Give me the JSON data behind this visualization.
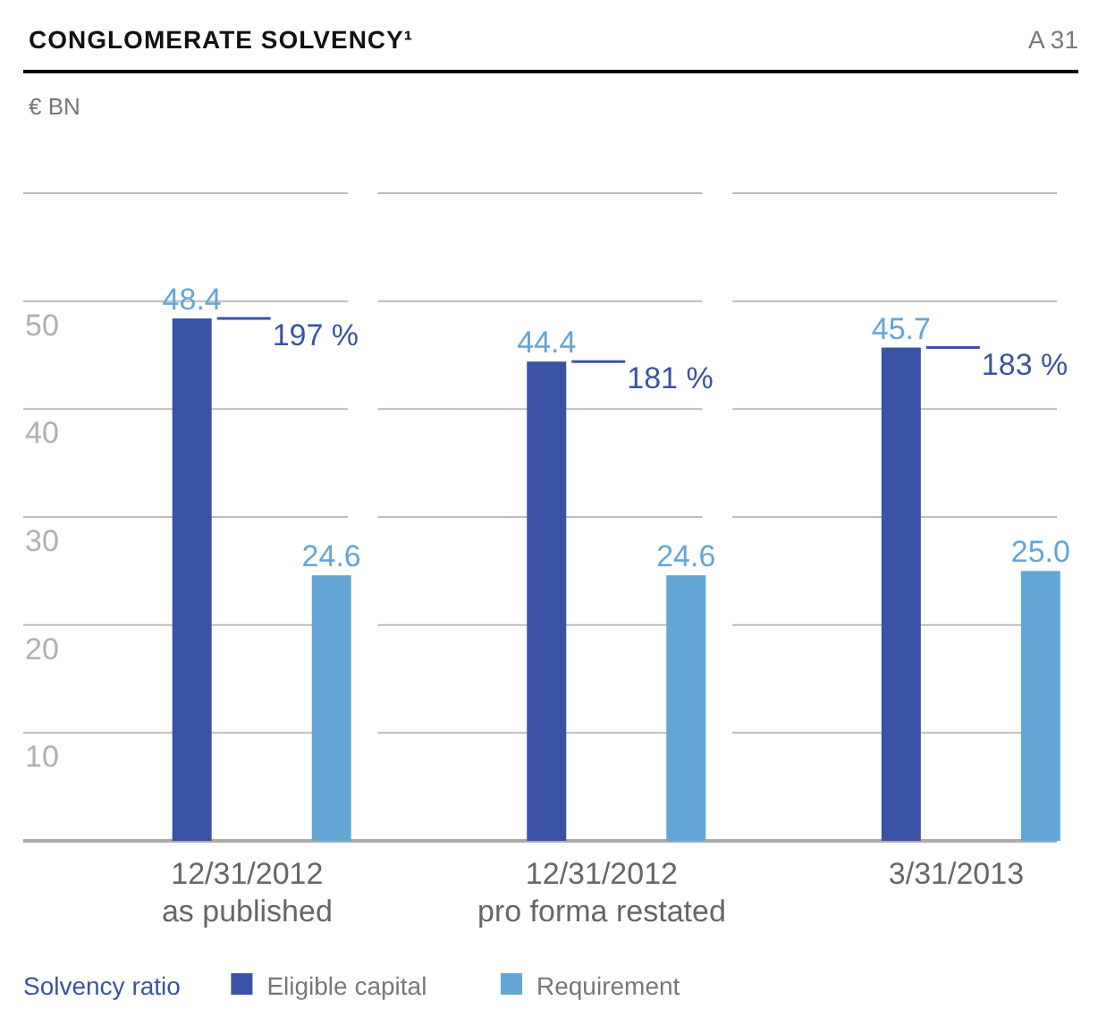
{
  "chart_data": {
    "type": "bar",
    "title": "CONGLOMERATE SOLVENCY¹",
    "subtitle": "A 31",
    "ylabel": "€ BN",
    "categories": [
      "12/31/2012\nas published",
      "12/31/2012\npro forma restated",
      "3/31/2013"
    ],
    "series": [
      {
        "name": "Eligible capital",
        "color": "#3a53a4",
        "values": [
          48.4,
          44.4,
          45.7
        ],
        "value_labels": [
          "48.4",
          "44.4",
          "45.7"
        ]
      },
      {
        "name": "Requirement",
        "color": "#63a6d6",
        "values": [
          24.6,
          24.6,
          25.0
        ],
        "value_labels": [
          "24.6",
          "24.6",
          "25.0"
        ]
      }
    ],
    "ylim": [
      0,
      60
    ],
    "yticks": [
      {
        "value": 0,
        "label": null
      },
      10,
      20,
      30,
      40,
      50,
      {
        "value": 60,
        "label": null
      }
    ],
    "grid": "y",
    "legend": "bottom left",
    "annotations": [
      "197 %",
      "181 %",
      "183 %",
      "Solvency ratio"
    ]
  }
}
